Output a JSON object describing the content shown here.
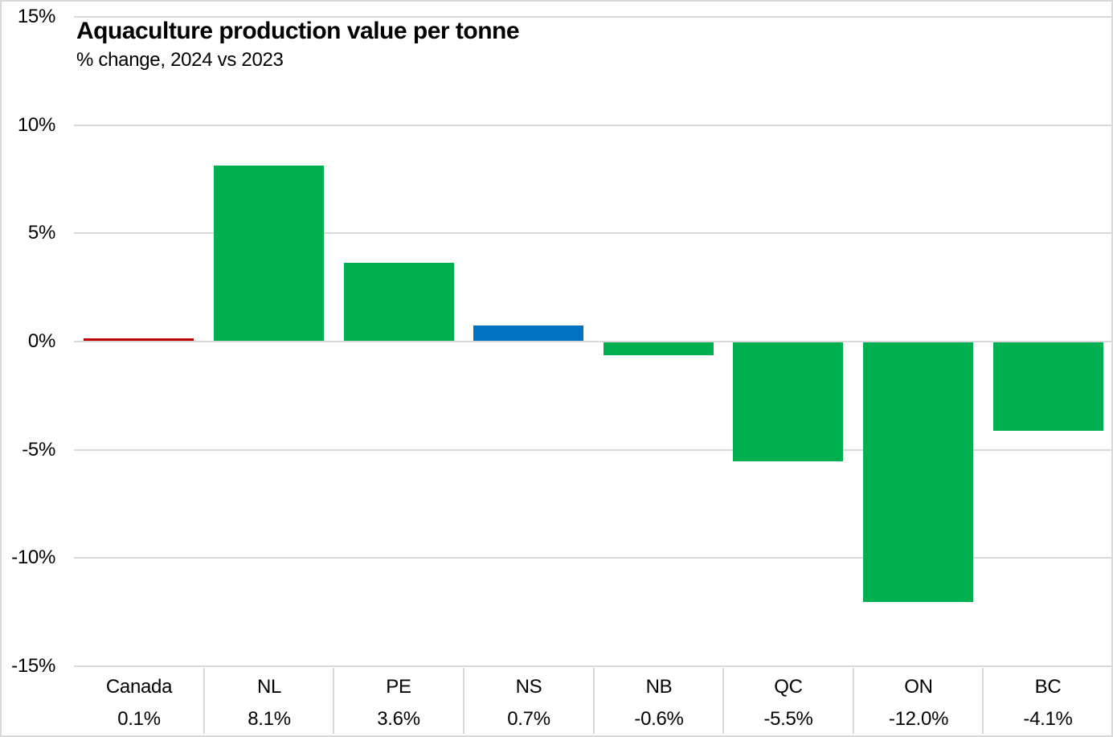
{
  "chart_data": {
    "type": "bar",
    "title": "Aquaculture production value per tonne",
    "subtitle": "% change, 2024 vs 2023",
    "categories": [
      "Canada",
      "NL",
      "PE",
      "NS",
      "NB",
      "QC",
      "ON",
      "BC"
    ],
    "values": [
      0.1,
      8.1,
      3.6,
      0.7,
      -0.6,
      -5.5,
      -12.0,
      -4.1
    ],
    "value_labels": [
      "0.1%",
      "8.1%",
      "3.6%",
      "0.7%",
      "-0.6%",
      "-5.5%",
      "-12.0%",
      "-4.1%"
    ],
    "bar_colors": [
      "#c00000",
      "#00b050",
      "#00b050",
      "#0070c0",
      "#00b050",
      "#00b050",
      "#00b050",
      "#00b050"
    ],
    "ylim": [
      -15,
      15
    ],
    "yticks": [
      15,
      10,
      5,
      0,
      -5,
      -10,
      -15
    ],
    "ytick_labels": [
      "15%",
      "10%",
      "5%",
      "0%",
      "-5%",
      "-10%",
      "-15%"
    ],
    "grid": true,
    "gridline_color": "#d9d9d9",
    "legend": "none",
    "xlabel": "",
    "ylabel": "",
    "colors": {
      "positive_negative_default": "#00b050",
      "highlight": "#0070c0",
      "national": "#c00000",
      "axis_text": "#000000"
    }
  }
}
